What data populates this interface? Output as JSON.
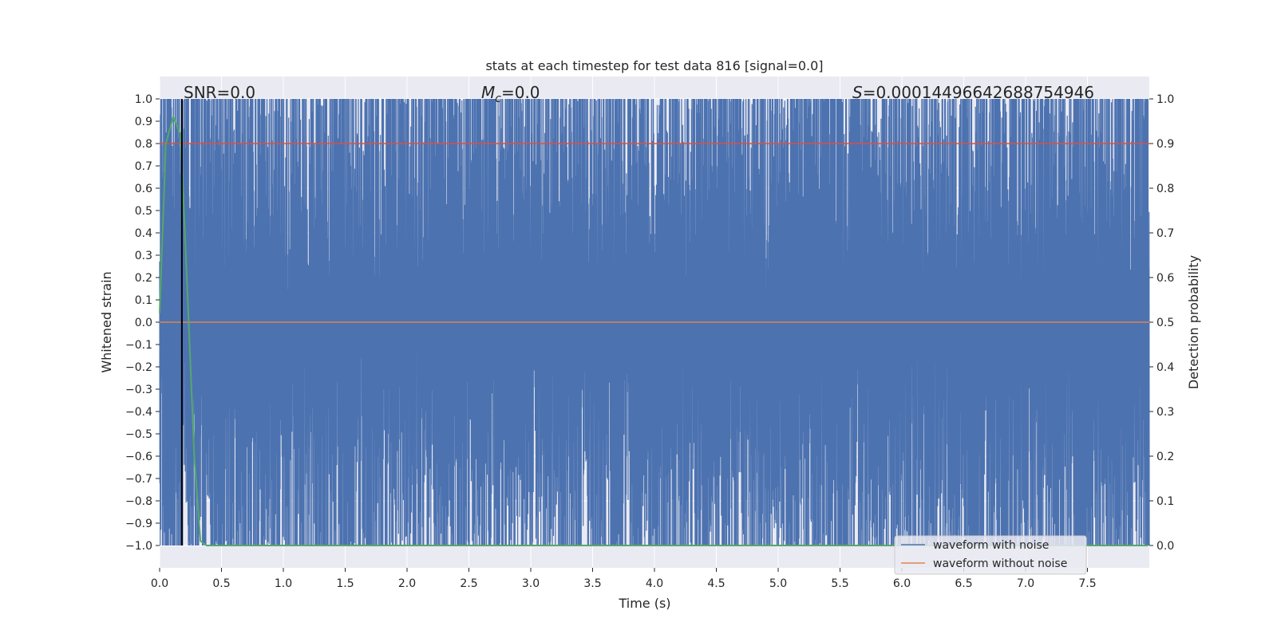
{
  "chart_data": {
    "type": "line",
    "title": "stats at each timestep for test data 816 [signal=0.0]",
    "xlabel": "Time (s)",
    "ylabel_left": "Whitened strain",
    "ylabel_right": "Detection probability",
    "xlim": [
      0.0,
      8.0
    ],
    "ylim_left": [
      -1.1,
      1.1
    ],
    "ylim_right": [
      -0.05,
      1.05
    ],
    "x_ticks": [
      "0.0",
      "0.5",
      "1.0",
      "1.5",
      "2.0",
      "2.5",
      "3.0",
      "3.5",
      "4.0",
      "4.5",
      "5.0",
      "5.5",
      "6.0",
      "6.5",
      "7.0",
      "7.5"
    ],
    "y_ticks_left": [
      "1.0",
      "0.9",
      "0.8",
      "0.7",
      "0.6",
      "0.5",
      "0.4",
      "0.3",
      "0.2",
      "0.1",
      "0.0",
      "−0.1",
      "−0.2",
      "−0.3",
      "−0.4",
      "−0.5",
      "−0.6",
      "−0.7",
      "−0.8",
      "−0.9",
      "−1.0"
    ],
    "y_ticks_right": [
      "1.0",
      "0.9",
      "0.8",
      "0.7",
      "0.6",
      "0.5",
      "0.4",
      "0.3",
      "0.2",
      "0.1",
      "0.0"
    ],
    "grid": true,
    "legend_position": "lower-right",
    "annotations": {
      "snr": "SNR=0.0",
      "mc_symbol": "M",
      "mc_subscript": "c",
      "mc_value": "=0.0",
      "s_symbol": "S",
      "s_value": "=0.00014496642688754946"
    },
    "series": [
      {
        "name": "waveform with noise",
        "color": "#4c72b0",
        "axis": "left",
        "description": "dense whitened noise spanning approx -1.0 to 1.0"
      },
      {
        "name": "waveform without noise",
        "color": "#dd8452",
        "axis": "left",
        "values_constant": 0.0
      },
      {
        "name": "",
        "color": "#55a868",
        "axis": "right",
        "points": [
          [
            0.0,
            0.52
          ],
          [
            0.05,
            0.9
          ],
          [
            0.11,
            0.96
          ],
          [
            0.17,
            0.92
          ],
          [
            0.22,
            0.6
          ],
          [
            0.28,
            0.2
          ],
          [
            0.33,
            0.01
          ],
          [
            0.38,
            0.0
          ],
          [
            7.99,
            0.0
          ]
        ]
      },
      {
        "name": "",
        "color": "#dd5040",
        "axis": "right",
        "values_constant": 0.9
      },
      {
        "name": "",
        "color": "#000000",
        "axis": "left",
        "vertical_line_x": 0.18
      }
    ]
  },
  "colors": {
    "axes_bg": "#eaeaf2",
    "grid": "#ffffff",
    "noise": "#4c72b0",
    "clean": "#dd8452",
    "probability": "#55a868",
    "threshold": "#dd5040",
    "marker": "#000000"
  }
}
